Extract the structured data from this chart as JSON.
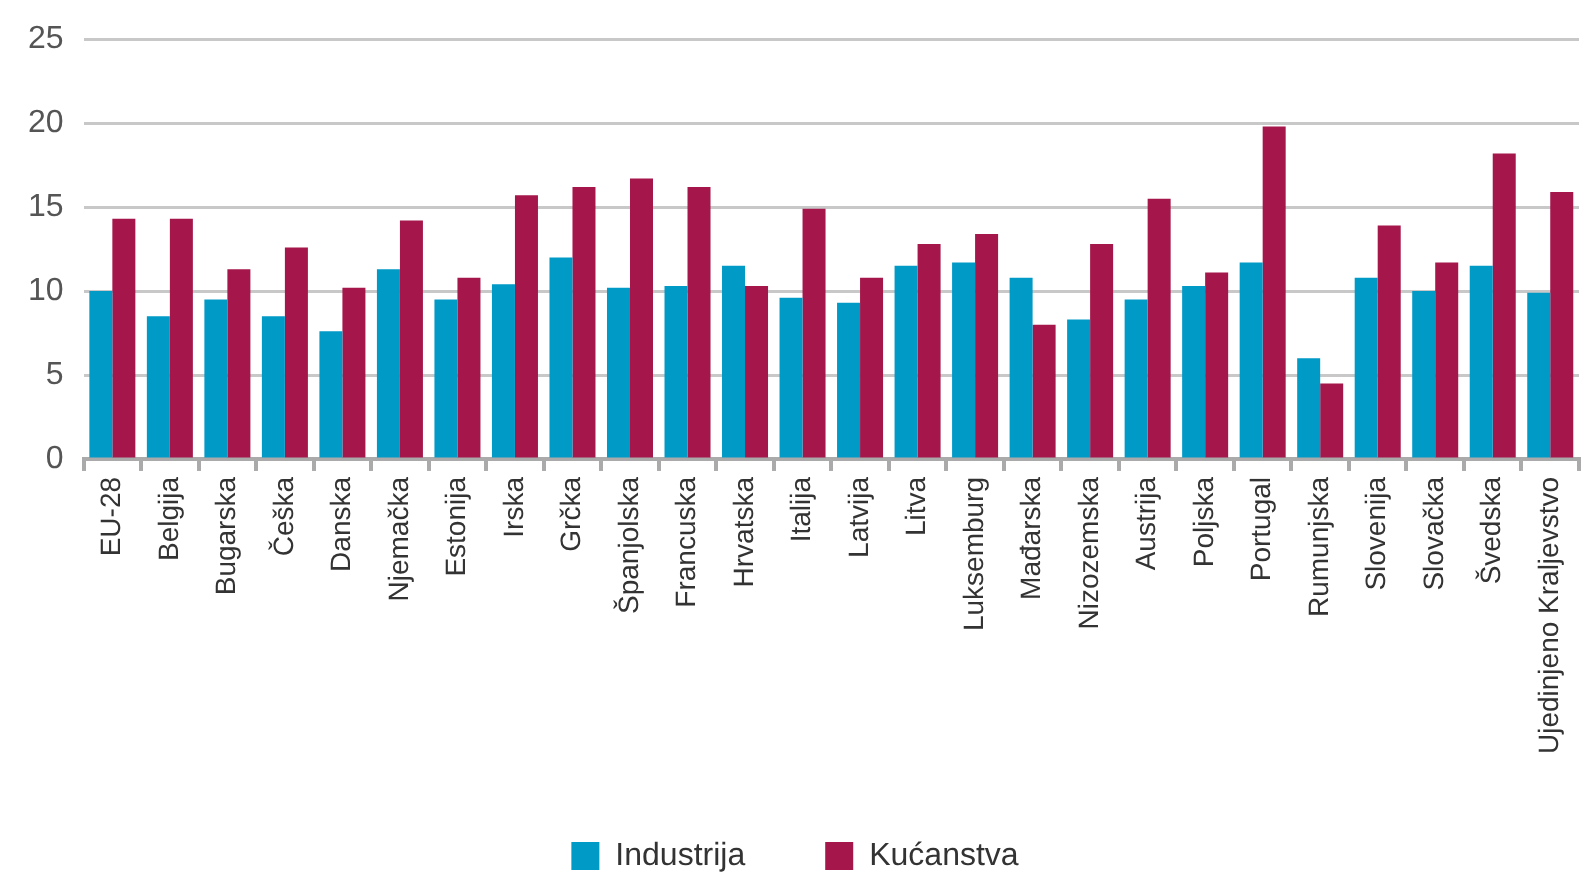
{
  "chart_data": {
    "type": "bar",
    "categories": [
      "EU-28",
      "Belgija",
      "Bugarska",
      "Češka",
      "Danska",
      "Njemačka",
      "Estonija",
      "Irska",
      "Grčka",
      "Španjolska",
      "Francuska",
      "Hrvatska",
      "Italija",
      "Latvija",
      "Litva",
      "Luksemburg",
      "Mađarska",
      "Nizozemska",
      "Austrija",
      "Poljska",
      "Portugal",
      "Rumunjska",
      "Slovenija",
      "Slovačka",
      "Švedska",
      "Ujedinjeno Kraljevstvo"
    ],
    "series": [
      {
        "name": "Industrija",
        "color": "#009ac7",
        "values": [
          10.0,
          8.5,
          9.5,
          8.5,
          7.6,
          11.3,
          9.5,
          10.4,
          12.0,
          10.2,
          10.3,
          11.5,
          9.6,
          9.3,
          11.5,
          11.7,
          10.8,
          8.3,
          9.5,
          10.3,
          11.7,
          6.0,
          10.8,
          10.0,
          11.5,
          9.9
        ]
      },
      {
        "name": "Kućanstva",
        "color": "#a5164b",
        "values": [
          14.3,
          14.3,
          11.3,
          12.6,
          10.2,
          14.2,
          10.8,
          15.7,
          16.2,
          16.7,
          16.2,
          10.3,
          14.9,
          10.8,
          12.8,
          13.4,
          8.0,
          12.8,
          15.5,
          11.1,
          19.8,
          4.5,
          13.9,
          11.7,
          18.2,
          15.9
        ]
      }
    ],
    "ylim": [
      0,
      25
    ],
    "yticks": [
      0,
      5,
      10,
      15,
      20,
      25
    ],
    "grid": "y",
    "legend": "bottom"
  }
}
